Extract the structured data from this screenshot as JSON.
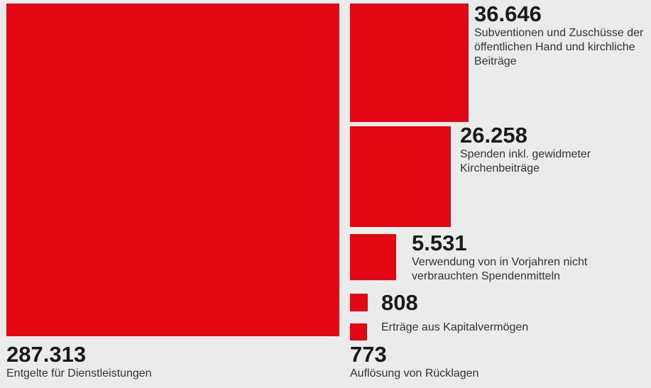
{
  "chart_data": {
    "type": "proportional-area",
    "color": "#e30613",
    "categories": [
      "Entgelte für Dienstleistungen",
      "Subventionen und Zuschüsse der öffentlichen Hand und kirchliche Beiträge",
      "Spenden inkl. gewidmeter Kirchenbeiträge",
      "Verwendung von in Vorjahren nicht verbrauchten Spendenmitteln",
      "Erträge aus Kapitalvermögen",
      "Auflösung von Rücklagen"
    ],
    "values": [
      287313,
      36646,
      26258,
      5531,
      808,
      773
    ],
    "value_labels": [
      "287.313",
      "36.646",
      "26.258",
      "5.531",
      "808",
      "773"
    ]
  }
}
